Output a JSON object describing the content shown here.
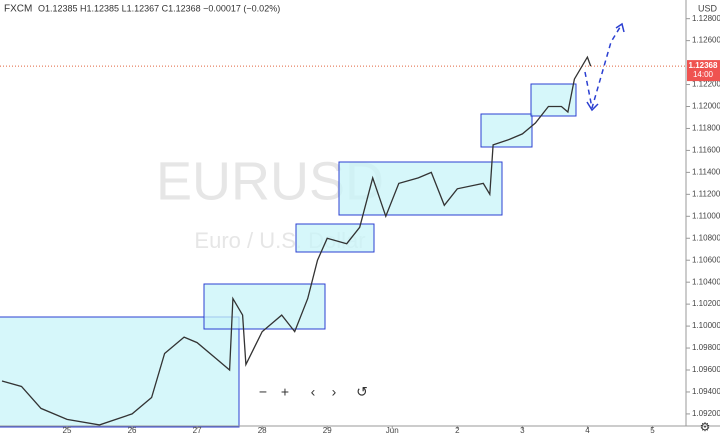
{
  "chart_data": {
    "type": "line",
    "source": "FXCM",
    "ohlc_text": "O1.12385 H1.12385 L1.12367 C1.12368 −0.00017 (−0.02%)",
    "watermark": "EURUSD",
    "watermark_subtitle": "Euro / U.S. Dollar",
    "currency": "USD",
    "countdown": "14:00",
    "last_price": 1.12368,
    "color": "#333333",
    "x": [
      0,
      0.3,
      0.6,
      1.0,
      1.5,
      2.0,
      2.3,
      2.5,
      2.8,
      3.0,
      3.3,
      3.5,
      3.55,
      3.7,
      3.75,
      4.0,
      4.3,
      4.5,
      4.7,
      4.85,
      5.0,
      5.3,
      5.5,
      5.7,
      5.9,
      6.1,
      6.4,
      6.6,
      6.8,
      7.0,
      7.4,
      7.5,
      7.55,
      7.8,
      8.0,
      8.2,
      8.4,
      8.6,
      8.7,
      8.8,
      9.0,
      9.05
    ],
    "values": [
      1.095,
      1.0945,
      1.0925,
      1.0915,
      1.091,
      1.092,
      1.0935,
      1.0975,
      1.099,
      1.0985,
      1.097,
      1.096,
      1.1025,
      1.101,
      1.0965,
      1.0995,
      1.101,
      1.0995,
      1.1025,
      1.106,
      1.108,
      1.1075,
      1.109,
      1.1135,
      1.11,
      1.113,
      1.1135,
      1.114,
      1.111,
      1.1125,
      1.113,
      1.112,
      1.1165,
      1.117,
      1.1175,
      1.1185,
      1.12,
      1.12,
      1.1195,
      1.1225,
      1.1245,
      1.12368
    ],
    "xlim": [
      -0.03,
      10.5
    ],
    "xticks": [
      {
        "value": 1,
        "label": "25"
      },
      {
        "value": 2,
        "label": "26"
      },
      {
        "value": 3,
        "label": "27"
      },
      {
        "value": 4,
        "label": "28"
      },
      {
        "value": 5,
        "label": "29"
      },
      {
        "value": 6,
        "label": "Jun"
      },
      {
        "value": 7,
        "label": "2"
      },
      {
        "value": 8,
        "label": "3"
      },
      {
        "value": 9,
        "label": "4"
      },
      {
        "value": 10,
        "label": "5"
      }
    ],
    "ylim": [
      1.0909,
      1.1297
    ],
    "yticks": [
      {
        "value": 1.092,
        "label": "1.09200"
      },
      {
        "value": 1.094,
        "label": "1.09400"
      },
      {
        "value": 1.096,
        "label": "1.09600"
      },
      {
        "value": 1.098,
        "label": "1.09800"
      },
      {
        "value": 1.1,
        "label": "1.10000"
      },
      {
        "value": 1.102,
        "label": "1.10200"
      },
      {
        "value": 1.104,
        "label": "1.10400"
      },
      {
        "value": 1.106,
        "label": "1.10600"
      },
      {
        "value": 1.108,
        "label": "1.10800"
      },
      {
        "value": 1.11,
        "label": "1.11000"
      },
      {
        "value": 1.112,
        "label": "1.11200"
      },
      {
        "value": 1.114,
        "label": "1.11400"
      },
      {
        "value": 1.116,
        "label": "1.11600"
      },
      {
        "value": 1.118,
        "label": "1.11800"
      },
      {
        "value": 1.12,
        "label": "1.12000"
      },
      {
        "value": 1.122,
        "label": "1.12200"
      },
      {
        "value": 1.126,
        "label": "1.12600"
      },
      {
        "value": 1.128,
        "label": "1.12800"
      }
    ],
    "grid": false
  }
}
